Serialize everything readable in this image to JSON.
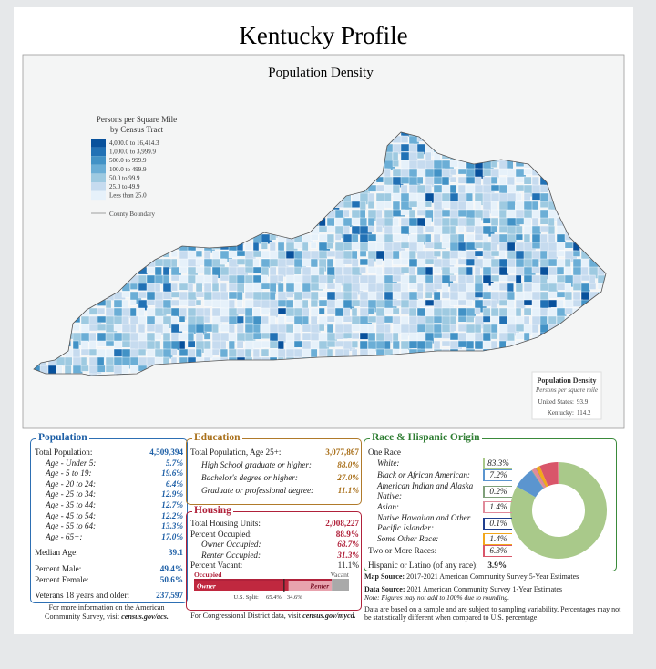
{
  "header": {
    "title": "Kentucky Profile"
  },
  "map": {
    "title": "Population Density",
    "legend": {
      "title_lines": [
        "Persons per Square Mile",
        "by Census Tract"
      ],
      "items": [
        {
          "label": "4,000.0 to 16,414.3",
          "color": "#08519c"
        },
        {
          "label": "1,000.0 to 3,999.9",
          "color": "#2171b5"
        },
        {
          "label": "500.0 to 999.9",
          "color": "#4292c6"
        },
        {
          "label": "100.0 to 499.9",
          "color": "#6baed6"
        },
        {
          "label": "50.0 to 99.9",
          "color": "#9ecae1"
        },
        {
          "label": "25.0 to 49.9",
          "color": "#c6dbef"
        },
        {
          "label": "Less than 25.0",
          "color": "#e6f1fa"
        }
      ],
      "boundary": "County Boundary"
    },
    "inset": {
      "title": "Population Density",
      "subtitle": "Persons per square mile",
      "rows": [
        {
          "label": "United States:",
          "value": "93.9"
        },
        {
          "label": "Kentucky:",
          "value": "114.2"
        }
      ]
    }
  },
  "population": {
    "title": "Population",
    "rows": [
      {
        "label": "Total Population:",
        "value": "4,509,394"
      },
      {
        "label": "Age - Under 5:",
        "value": "5.7%"
      },
      {
        "label": "Age - 5 to 19:",
        "value": "19.6%"
      },
      {
        "label": "Age - 20 to 24:",
        "value": "6.4%"
      },
      {
        "label": "Age - 25 to 34:",
        "value": "12.9%"
      },
      {
        "label": "Age - 35 to 44:",
        "value": "12.7%"
      },
      {
        "label": "Age - 45 to 54:",
        "value": "12.2%"
      },
      {
        "label": "Age - 55 to 64:",
        "value": "13.3%"
      },
      {
        "label": "Age - 65+:",
        "value": "17.0%"
      },
      {
        "label": "Median Age:",
        "value": "39.1"
      },
      {
        "label": "Percent Male:",
        "value": "49.4%"
      },
      {
        "label": "Percent Female:",
        "value": "50.6%"
      },
      {
        "label": "Veterans 18 years and older:",
        "value": "237,597"
      }
    ],
    "note": "For more information on the American Community Survey, visit ",
    "link": "census.gov/acs."
  },
  "education": {
    "title": "Education",
    "rows": [
      {
        "label": "Total Population, Age 25+:",
        "value": "3,077,867"
      },
      {
        "label": "High School  graduate or higher:",
        "value": "88.0%"
      },
      {
        "label": "Bachelor's degree or higher:",
        "value": "27.0%"
      },
      {
        "label": "Graduate or professional degree:",
        "value": "11.1%"
      }
    ]
  },
  "housing": {
    "title": "Housing",
    "rows": [
      {
        "label": "Total Housing Units:",
        "value": "2,008,227"
      },
      {
        "label": "Percent Occupied:",
        "value": 88.9,
        "value_label": "88.9%"
      },
      {
        "label": "Owner Occupied:",
        "value": 68.7,
        "value_label": "68.7%"
      },
      {
        "label": "Renter Occupied:",
        "value": 31.3,
        "value_label": "31.3%"
      },
      {
        "label": "Percent Vacant:",
        "value": 11.1,
        "value_label": "11.1%"
      }
    ],
    "bar": {
      "occupied": "Occupied",
      "vacant": "Vacant",
      "owner": "Owner",
      "renter": "Renter"
    },
    "us_split": {
      "label": "U.S. Split:",
      "owner": 65.4,
      "owner_label": "65.4%",
      "renter": 34.6,
      "renter_label": "34.6%"
    },
    "note": "For Congressional District data, visit ",
    "link": "census.gov/mycd."
  },
  "race": {
    "title": "Race & Hispanic Origin",
    "one_race": "One Race",
    "rows": [
      {
        "label": "White:",
        "value": 83.3,
        "value_label": "83.3%",
        "color": "#a9c98a"
      },
      {
        "label": "Black or African American:",
        "value": 7.2,
        "value_label": "7.2%",
        "color": "#5b95cf"
      },
      {
        "label": "American Indian and Alaska Native:",
        "value": 0.2,
        "value_label": "0.2%",
        "color": "#7fa07a"
      },
      {
        "label": "Asian:",
        "value": 1.4,
        "value_label": "1.4%",
        "color": "#e08a9a"
      },
      {
        "label": "Native Hawaiian and Other Pacific Islander:",
        "value": 0.1,
        "value_label": "0.1%",
        "color": "#1f3f8f"
      },
      {
        "label": "Some Other Race:",
        "value": 1.4,
        "value_label": "1.4%",
        "color": "#f2a71b"
      },
      {
        "label": "Two or More Races:",
        "value": 6.3,
        "value_label": "6.3%",
        "color": "#d9566a"
      }
    ],
    "hispanic": {
      "label": "Hispanic or Latino (of any race):",
      "value": "3.9%"
    }
  },
  "sources": {
    "map": {
      "label": "Map Source:",
      "text": "2017-2021 American Community Survey 5-Year Estimates"
    },
    "data": {
      "label": "Data Source:",
      "text": "2021 American Community Survey 1-Year Estimates"
    },
    "note": "Note: Figures may not add to 100% due to rounding.",
    "disclaimer": "Data are based on a sample and are subject to sampling variability. Percentages may not be statistically different when compared to U.S. percentage."
  }
}
